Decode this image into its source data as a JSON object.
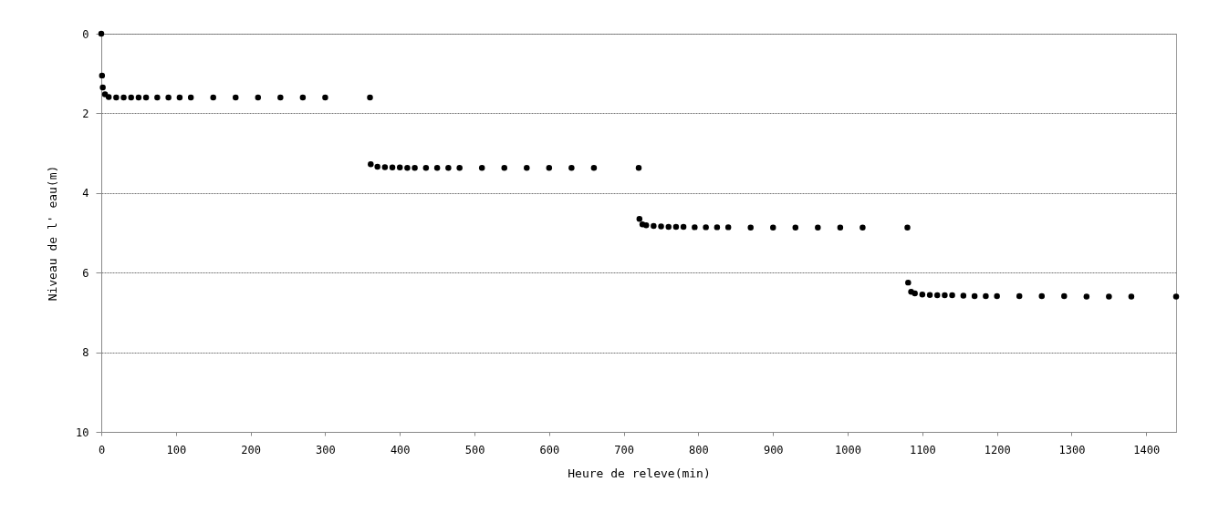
{
  "chart_data": {
    "type": "scatter",
    "xlabel": "Heure de releve(min)",
    "ylabel": "Niveau de l' eau(m)",
    "xlim": [
      0,
      1440
    ],
    "xticks": [
      0,
      100,
      200,
      300,
      400,
      500,
      600,
      700,
      800,
      900,
      1000,
      1100,
      1200,
      1300,
      1400
    ],
    "ylim": [
      10,
      0
    ],
    "yticks": [
      0,
      2,
      4,
      6,
      8,
      10
    ],
    "grid": "y",
    "marker": "circle",
    "legend": false,
    "series": [
      {
        "color": "#000000",
        "x": [
          0,
          1,
          2,
          5,
          10,
          20,
          30,
          40,
          50,
          60,
          75,
          90,
          105,
          120,
          150,
          180,
          210,
          240,
          270,
          300,
          360,
          361,
          370,
          380,
          390,
          400,
          410,
          420,
          435,
          450,
          465,
          480,
          510,
          540,
          570,
          600,
          630,
          660,
          720,
          721,
          725,
          730,
          740,
          750,
          760,
          770,
          780,
          795,
          810,
          825,
          840,
          870,
          900,
          930,
          960,
          990,
          1020,
          1080,
          1081,
          1085,
          1090,
          1100,
          1110,
          1120,
          1130,
          1140,
          1155,
          1170,
          1185,
          1200,
          1230,
          1260,
          1290,
          1320,
          1350,
          1380,
          1440
        ],
        "values": [
          0,
          1.05,
          1.35,
          1.52,
          1.59,
          1.6,
          1.6,
          1.6,
          1.6,
          1.6,
          1.6,
          1.6,
          1.6,
          1.6,
          1.6,
          1.6,
          1.6,
          1.6,
          1.6,
          1.6,
          1.6,
          3.28,
          3.34,
          3.35,
          3.36,
          3.36,
          3.37,
          3.37,
          3.37,
          3.37,
          3.37,
          3.37,
          3.37,
          3.37,
          3.37,
          3.37,
          3.37,
          3.37,
          3.37,
          4.65,
          4.79,
          4.81,
          4.83,
          4.84,
          4.85,
          4.85,
          4.85,
          4.86,
          4.86,
          4.86,
          4.86,
          4.87,
          4.87,
          4.87,
          4.87,
          4.87,
          4.87,
          4.87,
          6.25,
          6.48,
          6.52,
          6.55,
          6.56,
          6.57,
          6.57,
          6.57,
          6.58,
          6.59,
          6.59,
          6.59,
          6.59,
          6.59,
          6.59,
          6.6,
          6.6,
          6.6,
          6.6
        ]
      }
    ]
  }
}
